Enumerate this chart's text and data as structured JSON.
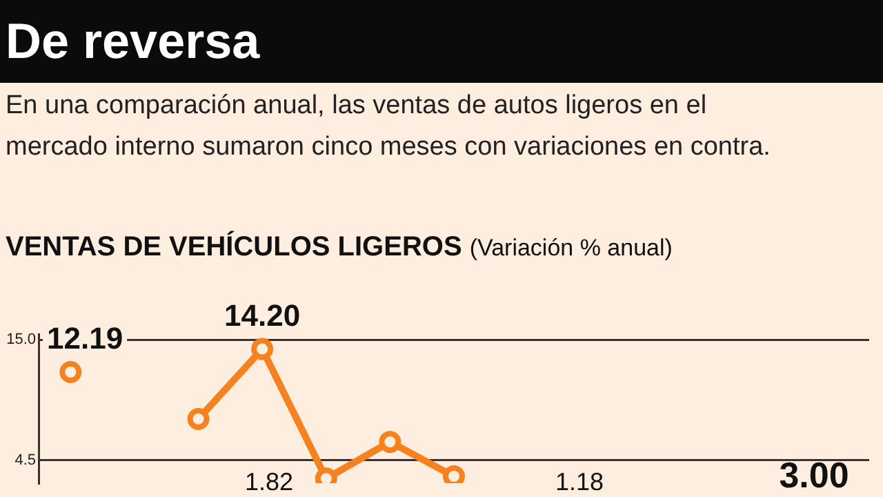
{
  "chart_data": {
    "type": "line",
    "title": "De reversa",
    "subtitle": "En una comparación anual, las ventas de autos ligeros en el mercado interno sumaron cinco meses con variaciones en contra.",
    "annotations": [
      "VENTAS DE VEHÍCULOS LIGEROS",
      "(Variación % anual)",
      "1.82",
      "1.18",
      "3.00"
    ],
    "categories": [
      null,
      null,
      null,
      null,
      null,
      null,
      null,
      null,
      null,
      null,
      null,
      null,
      null
    ],
    "series": [
      {
        "color": "#f5821f",
        "values": [
          12.19,
          null,
          8.1,
          14.2,
          2.9,
          6.1,
          3.1,
          null,
          null,
          null,
          null,
          null,
          null
        ],
        "value_labels": [
          "12.19",
          null,
          null,
          "14.20",
          null,
          null,
          null,
          null,
          null,
          null,
          null,
          null,
          null
        ]
      }
    ],
    "ylim": [
      2.5,
      15.5
    ],
    "yticks": [
      {
        "value": 15,
        "label": "15.0"
      },
      4.5
    ],
    "grid": "y",
    "legend": false,
    "marker": "circle",
    "line_style": "solid"
  }
}
